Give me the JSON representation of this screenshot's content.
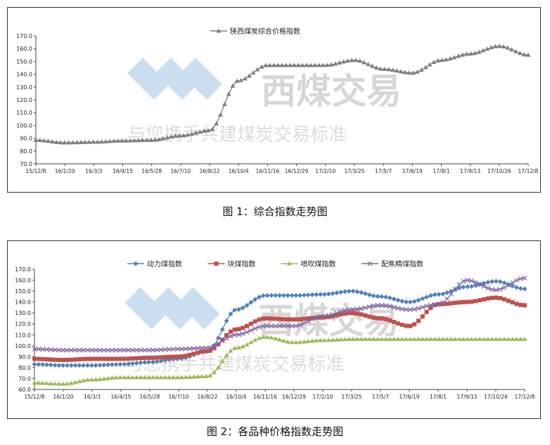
{
  "watermark": {
    "brand": "西煤交易",
    "slogan": "与您携手共建煤炭交易标准"
  },
  "captions": [
    "图 1：综合指数走势图",
    "图 2：各品种价格指数走势图"
  ],
  "chart_data": [
    {
      "type": "line",
      "categories": [
        "15/12/8",
        "16/1/20",
        "16/3/3",
        "16/4/15",
        "16/5/28",
        "16/7/10",
        "16/8/22",
        "16/10/4",
        "16/11/16",
        "16/12/29",
        "17/2/10",
        "17/3/25",
        "17/5/7",
        "17/6/19",
        "17/8/1",
        "17/9/13",
        "17/10/26",
        "17/12/8"
      ],
      "ylim": [
        70,
        170
      ],
      "yticks": [
        "70.0",
        "80.0",
        "90.0",
        "100.0",
        "110.0",
        "120.0",
        "130.0",
        "140.0",
        "150.0",
        "160.0",
        "170.0"
      ],
      "legend_position": "top-center",
      "series": [
        {
          "name": "陕西煤炭综合价格指数",
          "color": "#7f7f7f",
          "marker": "triangle",
          "values": [
            88.5,
            86.5,
            87,
            88,
            88.5,
            92,
            96,
            135,
            147,
            147,
            147,
            151,
            144,
            141,
            151,
            156,
            162,
            155
          ]
        }
      ]
    },
    {
      "type": "line",
      "categories": [
        "15/12/8",
        "16/1/20",
        "16/3/3",
        "16/4/15",
        "16/5/28",
        "16/7/10",
        "16/8/22",
        "16/10/4",
        "16/11/16",
        "16/12/29",
        "17/2/10",
        "17/3/25",
        "17/5/7",
        "17/6/19",
        "17/8/1",
        "17/9/13",
        "17/10/26",
        "17/12/8"
      ],
      "ylim": [
        60,
        170
      ],
      "yticks": [
        "60.0",
        "70.0",
        "80.0",
        "90.0",
        "100.0",
        "110.0",
        "120.0",
        "130.0",
        "140.0",
        "150.0",
        "160.0",
        "170.0"
      ],
      "legend_position": "top-center",
      "series": [
        {
          "name": "动力煤指数",
          "color": "#4f81bd",
          "marker": "diamond",
          "values": [
            83,
            82,
            82,
            83,
            85,
            88,
            95,
            133,
            146,
            146,
            147,
            150,
            145,
            140,
            147,
            154,
            159,
            152
          ]
        },
        {
          "name": "块煤指数",
          "color": "#c0504d",
          "marker": "square",
          "values": [
            88,
            87,
            88,
            88,
            89,
            90,
            95,
            115,
            125,
            124,
            126,
            130,
            125,
            118,
            138,
            140,
            144,
            137
          ]
        },
        {
          "name": "喷吹煤指数",
          "color": "#9bbb59",
          "marker": "triangle",
          "values": [
            66,
            65,
            69,
            71,
            71,
            71,
            72,
            98,
            108,
            103,
            105,
            106,
            106,
            106,
            106,
            106,
            106,
            106
          ]
        },
        {
          "name": "配焦精煤指数",
          "color": "#8064a2",
          "marker": "cross",
          "values": [
            97,
            96,
            96,
            96,
            96,
            97,
            98,
            110,
            118,
            118,
            127,
            133,
            137,
            133,
            138,
            160,
            151,
            162
          ]
        }
      ]
    }
  ]
}
